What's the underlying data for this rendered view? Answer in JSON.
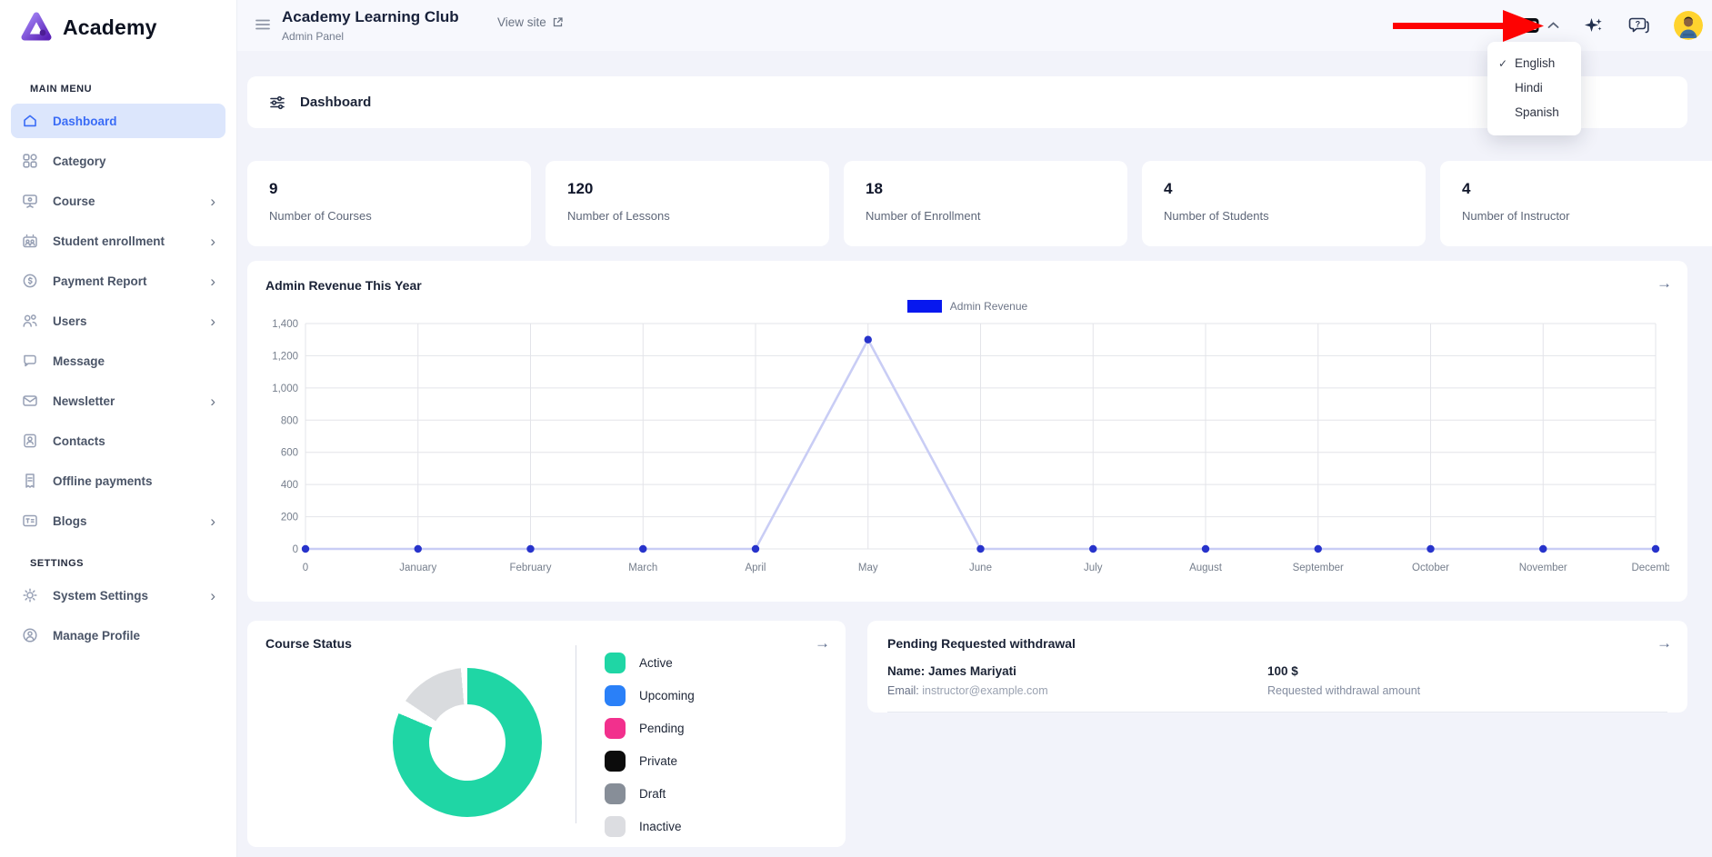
{
  "brand": {
    "name": "Academy"
  },
  "topbar": {
    "title": "Academy Learning Club",
    "subtitle": "Admin Panel",
    "view_site_label": "View site"
  },
  "language_menu": {
    "selected": "English",
    "options": [
      {
        "label": "English",
        "checked": true
      },
      {
        "label": "Hindi",
        "checked": false
      },
      {
        "label": "Spanish",
        "checked": false
      }
    ]
  },
  "page": {
    "heading": "Dashboard"
  },
  "sidebar": {
    "section1_label": "MAIN MENU",
    "section2_label": "SETTINGS",
    "items": [
      {
        "label": "Dashboard"
      },
      {
        "label": "Category"
      },
      {
        "label": "Course"
      },
      {
        "label": "Student enrollment"
      },
      {
        "label": "Payment Report"
      },
      {
        "label": "Users"
      },
      {
        "label": "Message"
      },
      {
        "label": "Newsletter"
      },
      {
        "label": "Contacts"
      },
      {
        "label": "Offline payments"
      },
      {
        "label": "Blogs"
      },
      {
        "label": "System Settings"
      },
      {
        "label": "Manage Profile"
      }
    ]
  },
  "stats": [
    {
      "value": "9",
      "label": "Number of Courses"
    },
    {
      "value": "120",
      "label": "Number of Lessons"
    },
    {
      "value": "18",
      "label": "Number of Enrollment"
    },
    {
      "value": "4",
      "label": "Number of Students"
    },
    {
      "value": "4",
      "label": "Number of Instructor"
    }
  ],
  "withdrawal": {
    "title": "Pending Requested withdrawal",
    "name_label": "Name:",
    "name": "James Mariyati",
    "email_label": "Email:",
    "email": "instructor@example.com",
    "amount": "100 $",
    "amount_caption": "Requested withdrawal amount"
  },
  "icons": {
    "arrow_right": "→",
    "chevron_right": "›",
    "check": "✓"
  },
  "annotation": {
    "description": "red arrow pointing at language switcher",
    "color": "#fe0202"
  },
  "chart_data": [
    {
      "type": "line",
      "title": "Admin Revenue This Year",
      "legend": [
        {
          "name": "Admin Revenue",
          "color": "#0718ef"
        }
      ],
      "legend_position": "top-center",
      "categories": [
        "0",
        "January",
        "February",
        "March",
        "April",
        "May",
        "June",
        "July",
        "August",
        "September",
        "October",
        "November",
        "December"
      ],
      "series": [
        {
          "name": "Admin Revenue",
          "values": [
            0,
            0,
            0,
            0,
            0,
            1300,
            0,
            0,
            0,
            0,
            0,
            0,
            0
          ]
        }
      ],
      "ylim": [
        0,
        1400
      ],
      "ytick_values": [
        0,
        200,
        400,
        600,
        800,
        1000,
        1200,
        1400
      ],
      "ytick_labels": [
        "0",
        "200",
        "400",
        "600",
        "800",
        "1,000",
        "1,200",
        "1,400"
      ],
      "grid": true,
      "line_color": "#c9cdf5",
      "point_color": "#2733cb",
      "grid_color": "#e3e4e9",
      "axis_label_color": "#757e8c"
    },
    {
      "type": "pie",
      "donut": true,
      "title": "Course Status",
      "legend_position": "right",
      "slices": [
        {
          "label": "Active",
          "color": "#1fd6a5",
          "from_deg": 0,
          "to_deg": 293,
          "pct": 81.4
        },
        {
          "label": "gap",
          "color": "#ffffff",
          "from_deg": 293,
          "to_deg": 304
        },
        {
          "label": "Inactive",
          "color": "#d9dbde",
          "from_deg": 304,
          "to_deg": 355,
          "pct": 14.2
        },
        {
          "label": "gap",
          "color": "#ffffff",
          "from_deg": 355,
          "to_deg": 360
        }
      ],
      "legend": [
        {
          "label": "Active",
          "color": "#1fd6a5"
        },
        {
          "label": "Upcoming",
          "color": "#2a80f8"
        },
        {
          "label": "Pending",
          "color": "#f2308d"
        },
        {
          "label": "Private",
          "color": "#0c0c0c"
        },
        {
          "label": "Draft",
          "color": "#878e98"
        },
        {
          "label": "Inactive",
          "color": "#dcdde1"
        }
      ]
    }
  ]
}
